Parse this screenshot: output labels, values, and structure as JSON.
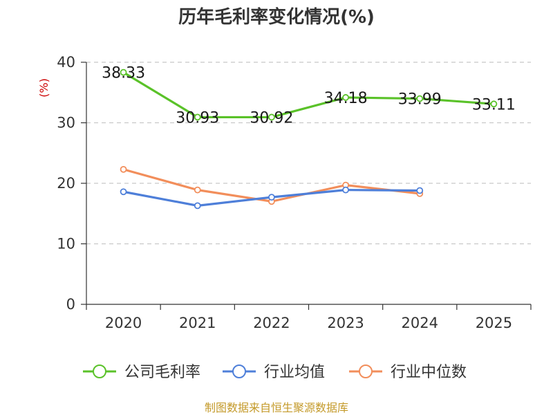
{
  "chart_data": {
    "type": "line",
    "title": "历年毛利率变化情况(%)",
    "ylabel": "(%)",
    "xlabel": "",
    "ylim": [
      0,
      40
    ],
    "yticks": [
      0,
      10,
      20,
      30,
      40
    ],
    "grid": true,
    "legend_position": "bottom",
    "categories": [
      "2020",
      "2021",
      "2022",
      "2023",
      "2024",
      "2025"
    ],
    "series": [
      {
        "name": "公司毛利率",
        "color": "#5ac229",
        "values": [
          38.33,
          30.93,
          30.92,
          34.18,
          33.99,
          33.11
        ],
        "labels": [
          "38.33",
          "30.93",
          "30.92",
          "34.18",
          "33.99",
          "33.11"
        ]
      },
      {
        "name": "行业均值",
        "color": "#4e7fd9",
        "values": [
          18.6,
          16.3,
          17.7,
          18.9,
          18.8,
          null
        ]
      },
      {
        "name": "行业中位数",
        "color": "#f28e5b",
        "values": [
          22.3,
          18.9,
          17.0,
          19.7,
          18.3,
          null
        ]
      }
    ]
  },
  "colors": {
    "ylabel": "#cc0000",
    "source": "#c49a2a",
    "axis": "#333333",
    "grid": "#c8c8c8"
  },
  "footer": {
    "source": "制图数据来自恒生聚源数据库"
  }
}
